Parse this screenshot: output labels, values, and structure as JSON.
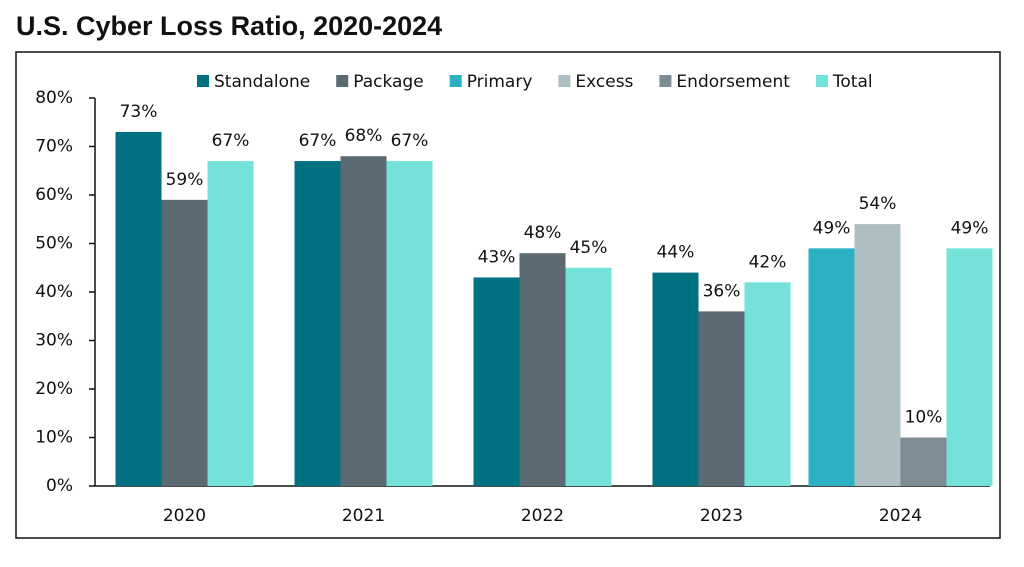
{
  "chart_data": {
    "type": "bar",
    "title": "U.S. Cyber Loss Ratio, 2020-2024",
    "categories": [
      "2020",
      "2021",
      "2022",
      "2023",
      "2024"
    ],
    "series": [
      {
        "name": "Standalone",
        "color": "#007180",
        "values": [
          73,
          67,
          43,
          44,
          null
        ],
        "value_labels": [
          "73%",
          "67%",
          "43%",
          "44%",
          null
        ]
      },
      {
        "name": "Package",
        "color": "#5b6a73",
        "values": [
          59,
          68,
          48,
          36,
          null
        ],
        "value_labels": [
          "59%",
          "68%",
          "48%",
          "36%",
          null
        ]
      },
      {
        "name": "Primary",
        "color": "#2bb0c4",
        "values": [
          null,
          null,
          null,
          null,
          49
        ],
        "value_labels": [
          null,
          null,
          null,
          null,
          "49%"
        ]
      },
      {
        "name": "Excess",
        "color": "#adbfc3",
        "values": [
          null,
          null,
          null,
          null,
          54
        ],
        "value_labels": [
          null,
          null,
          null,
          null,
          "54%"
        ]
      },
      {
        "name": "Endorsement",
        "color": "#7d8d95",
        "values": [
          null,
          null,
          null,
          null,
          10
        ],
        "value_labels": [
          null,
          null,
          null,
          null,
          "10%"
        ]
      },
      {
        "name": "Total",
        "color": "#74e2d9",
        "values": [
          67,
          67,
          45,
          42,
          49
        ],
        "value_labels": [
          "67%",
          "67%",
          "45%",
          "42%",
          "49%"
        ]
      }
    ],
    "ylim": [
      0,
      80
    ],
    "yticks": [
      {
        "value": 0,
        "label": "0%"
      },
      {
        "value": 10,
        "label": "10%"
      },
      {
        "value": 20,
        "label": "20%"
      },
      {
        "value": 30,
        "label": "30%"
      },
      {
        "value": 40,
        "label": "40%"
      },
      {
        "value": 50,
        "label": "50%"
      },
      {
        "value": 60,
        "label": "60%"
      },
      {
        "value": 70,
        "label": "70%"
      },
      {
        "value": 80,
        "label": "80%"
      }
    ],
    "grid": false,
    "legend": "top"
  }
}
